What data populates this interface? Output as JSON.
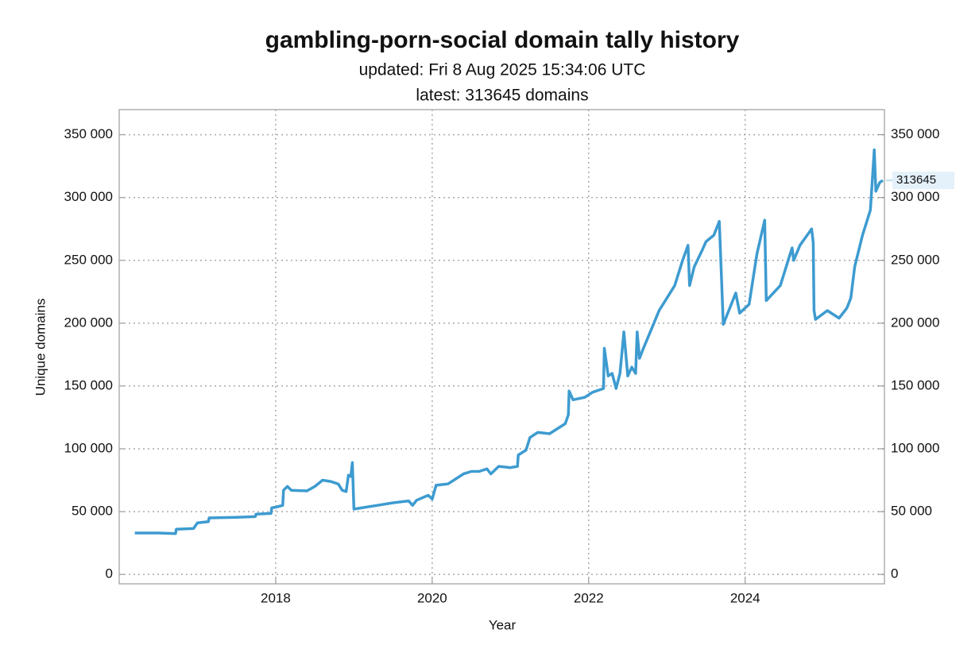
{
  "chart_data": {
    "type": "line",
    "title": "gambling-porn-social domain tally history",
    "subtitle": [
      "updated: Fri 8 Aug 2025 15:34:06 UTC",
      "latest: 313645 domains"
    ],
    "xlabel": "Year",
    "ylabel": "Unique domains",
    "xlim": [
      2016,
      2025.78
    ],
    "xticks": [
      2018,
      2020,
      2022,
      2024
    ],
    "ylim": [
      -7500,
      370000
    ],
    "yticks": [
      {
        "value": 0,
        "label": "0"
      },
      {
        "value": 50000,
        "label": "50 000"
      },
      {
        "value": 100000,
        "label": "100 000"
      },
      {
        "value": 150000,
        "label": "150 000"
      },
      {
        "value": 200000,
        "label": "200 000"
      },
      {
        "value": 250000,
        "label": "250 000"
      },
      {
        "value": 300000,
        "label": "300 000"
      },
      {
        "value": 350000,
        "label": "350 000"
      }
    ],
    "y2lim": [
      -7500,
      370000
    ],
    "y2ticks": [
      {
        "value": 0,
        "label": "0"
      },
      {
        "value": 50000,
        "label": "50 000"
      },
      {
        "value": 100000,
        "label": "100 000"
      },
      {
        "value": 150000,
        "label": "150 000"
      },
      {
        "value": 200000,
        "label": "200 000"
      },
      {
        "value": 250000,
        "label": "250 000"
      },
      {
        "value": 300000,
        "label": "300 000"
      },
      {
        "value": 350000,
        "label": "350 000"
      }
    ],
    "grid": true,
    "x": [
      2016.2,
      2016.5,
      2016.72,
      2016.73,
      2016.95,
      2017.0,
      2017.14,
      2017.15,
      2017.5,
      2017.74,
      2017.75,
      2017.94,
      2017.95,
      2018.0,
      2018.09,
      2018.1,
      2018.15,
      2018.2,
      2018.4,
      2018.5,
      2018.6,
      2018.7,
      2018.8,
      2018.85,
      2018.9,
      2018.93,
      2018.96,
      2018.98,
      2019.0,
      2019.3,
      2019.5,
      2019.7,
      2019.75,
      2019.8,
      2019.95,
      2020.0,
      2020.05,
      2020.2,
      2020.4,
      2020.5,
      2020.6,
      2020.7,
      2020.75,
      2020.85,
      2021.0,
      2021.09,
      2021.1,
      2021.2,
      2021.25,
      2021.35,
      2021.5,
      2021.7,
      2021.74,
      2021.75,
      2021.8,
      2021.95,
      2022.05,
      2022.19,
      2022.2,
      2022.25,
      2022.3,
      2022.35,
      2022.4,
      2022.45,
      2022.5,
      2022.55,
      2022.6,
      2022.62,
      2022.65,
      2022.7,
      2022.8,
      2022.9,
      2023.0,
      2023.1,
      2023.2,
      2023.27,
      2023.29,
      2023.35,
      2023.45,
      2023.5,
      2023.6,
      2023.67,
      2023.72,
      2023.88,
      2023.93,
      2024.05,
      2024.15,
      2024.25,
      2024.27,
      2024.45,
      2024.6,
      2024.62,
      2024.7,
      2024.85,
      2024.87,
      2024.88,
      2024.9,
      2025.05,
      2025.2,
      2025.3,
      2025.35,
      2025.4,
      2025.5,
      2025.6,
      2025.65,
      2025.67,
      2025.72,
      2025.76
    ],
    "series": [
      {
        "name": "Unique domains",
        "color": "#3d9bd0",
        "values": [
          33000,
          33000,
          32500,
          36000,
          36500,
          41000,
          42000,
          45000,
          45500,
          46000,
          48000,
          48500,
          53000,
          53500,
          55000,
          67000,
          70000,
          67000,
          66500,
          70000,
          75000,
          74000,
          72000,
          67000,
          66000,
          79000,
          78000,
          89000,
          52000,
          55000,
          57000,
          58500,
          55000,
          59000,
          63000,
          60000,
          71000,
          72000,
          80000,
          82000,
          82000,
          84000,
          80000,
          86000,
          85000,
          86000,
          95000,
          99000,
          109000,
          113000,
          112000,
          120000,
          127000,
          146000,
          139000,
          141000,
          145000,
          148000,
          180000,
          158000,
          160000,
          148000,
          160000,
          193000,
          158000,
          165000,
          160000,
          193000,
          172000,
          180000,
          195000,
          210000,
          220000,
          230000,
          250000,
          262000,
          230000,
          245000,
          258000,
          265000,
          270000,
          281000,
          199000,
          224000,
          208000,
          215000,
          255000,
          282000,
          218000,
          230000,
          260000,
          250000,
          262000,
          275000,
          264000,
          210000,
          203000,
          210000,
          204000,
          212000,
          220000,
          245000,
          270000,
          290000,
          338000,
          305000,
          312000,
          313645
        ]
      }
    ]
  }
}
